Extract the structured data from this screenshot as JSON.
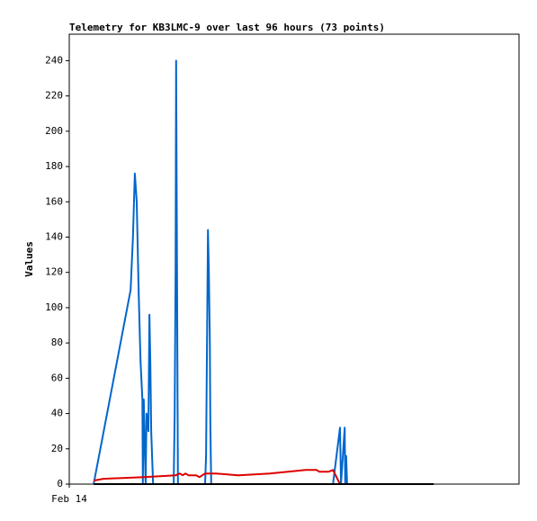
{
  "chart_data": {
    "type": "line",
    "title": "Telemetry for KB3LMC-9 over last 96 hours (73 points)",
    "y_label": "Values",
    "xlim": [
      0,
      96
    ],
    "xticks": [
      {
        "value": 0,
        "label": "Feb 14"
      }
    ],
    "ylim": [
      0,
      255
    ],
    "yticks": [
      0,
      20,
      40,
      60,
      80,
      100,
      120,
      140,
      160,
      180,
      200,
      220,
      240
    ],
    "series": [
      {
        "color": "#0066cc",
        "x": [
          5.2,
          13.1,
          13.6,
          14.0,
          14.4,
          14.8,
          15.2,
          15.6,
          15.7,
          15.9,
          16.3,
          16.5,
          16.9,
          17.1,
          17.3,
          17.5,
          17.9,
          22.3,
          22.5,
          22.7,
          22.8,
          23.0,
          23.2,
          29.0,
          29.2,
          29.6,
          29.8,
          30.0,
          30.1,
          30.3,
          56.3,
          57.8,
          58.0,
          58.8,
          58.9,
          59.1,
          59.3
        ],
        "values": [
          0,
          110,
          140,
          176,
          160,
          110,
          70,
          48,
          0,
          48,
          0,
          40,
          30,
          96,
          70,
          30,
          0,
          0,
          40,
          120,
          240,
          120,
          0,
          0,
          16,
          144,
          120,
          80,
          36,
          0,
          0,
          32,
          0,
          32,
          0,
          16,
          0
        ]
      },
      {
        "color": "#dd0000",
        "x": [
          5.2,
          7.3,
          15.9,
          22.7,
          23.6,
          24.2,
          24.8,
          25.5,
          27.1,
          27.8,
          29.0,
          31.3,
          36.1,
          42.8,
          50.5,
          52.8,
          53.4,
          55.3,
          56.3,
          57.8
        ],
        "values": [
          2,
          3,
          4,
          5,
          6,
          5,
          6,
          5,
          5,
          4,
          6,
          6,
          5,
          6,
          8,
          8,
          7,
          7,
          8,
          0
        ]
      },
      {
        "color": "#000000",
        "x": [
          5.2,
          77.8
        ],
        "values": [
          0,
          0
        ]
      }
    ]
  }
}
